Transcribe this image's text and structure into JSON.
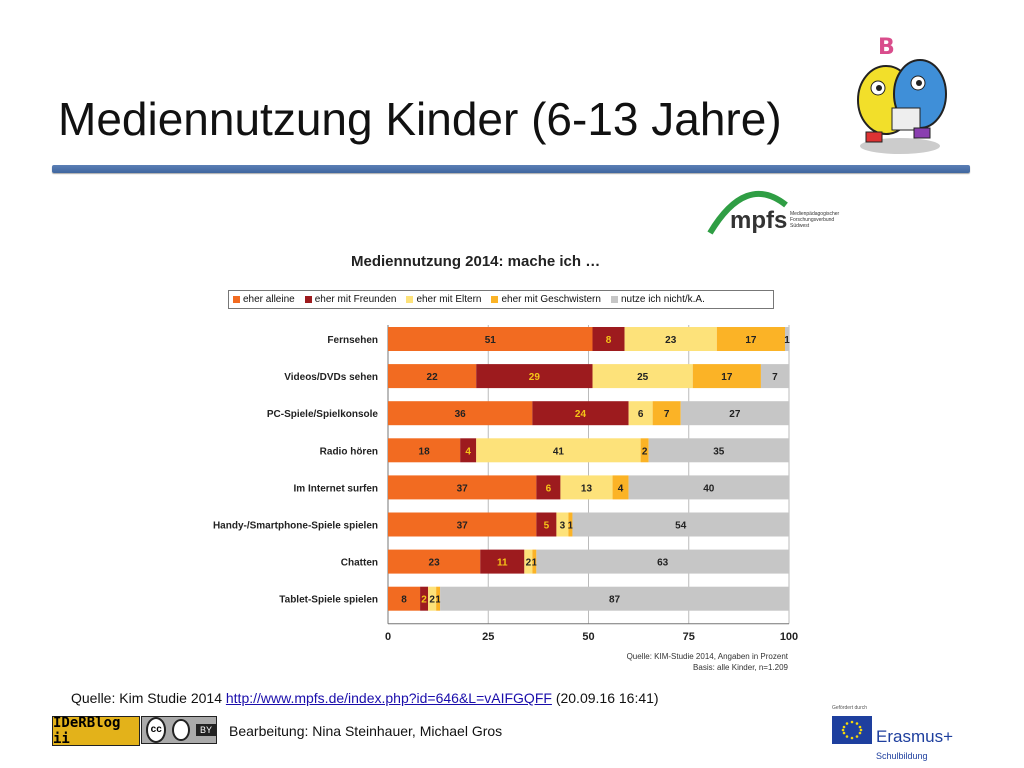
{
  "slide": {
    "title": "Mediennutzung Kinder (6-13 Jahre)",
    "source_prefix": "Quelle: Kim Studie 2014 ",
    "source_link": "http://www.mpfs.de/index.php?id=646&L=vAIFGQFF",
    "source_suffix": " (20.09.16 16:41)",
    "credit": "Bearbeitung: Nina Steinhauer, Michael Gros"
  },
  "logos": {
    "mpfs_text": "mpfs",
    "mpfs_small": "Medienpädagogischer Forschungsverbund Südwest",
    "iderblog": "IDeRBlog ii",
    "cc": "cc",
    "cc_by": "BY",
    "erasmus_supported": "Gefördert durch",
    "erasmus": "Erasmus+",
    "erasmus_sub": "Schulbildung"
  },
  "chart_data": {
    "type": "bar",
    "orientation": "horizontal",
    "stacked": true,
    "title": "Mediennutzung 2014:  mache ich …",
    "categories": [
      "Fernsehen",
      "Videos/DVDs sehen",
      "PC-Spiele/Spielkonsole",
      "Radio hören",
      "Im Internet surfen",
      "Handy-/Smartphone-Spiele spielen",
      "Chatten",
      "Tablet-Spiele spielen"
    ],
    "series": [
      {
        "name": "eher alleine",
        "color": "#f26b21",
        "label_color": "#222222",
        "values": [
          51,
          22,
          36,
          18,
          37,
          37,
          23,
          8
        ]
      },
      {
        "name": "eher mit Freunden",
        "color": "#9d1b1e",
        "label_color": "#f5c518",
        "values": [
          8,
          29,
          24,
          4,
          6,
          5,
          11,
          2
        ]
      },
      {
        "name": "eher mit Eltern",
        "color": "#fde27a",
        "label_color": "#222222",
        "values": [
          23,
          25,
          6,
          41,
          13,
          3,
          2,
          2
        ]
      },
      {
        "name": "eher mit Geschwistern",
        "color": "#fbb326",
        "label_color": "#222222",
        "values": [
          17,
          17,
          7,
          2,
          4,
          1,
          1,
          1
        ]
      },
      {
        "name": "nutze ich nicht/k.A.",
        "color": "#c6c6c6",
        "label_color": "#222222",
        "values": [
          1,
          7,
          27,
          35,
          40,
          54,
          63,
          87
        ]
      }
    ],
    "xlim": [
      0,
      100
    ],
    "xticks": [
      0,
      25,
      50,
      75,
      100
    ],
    "grid": true,
    "legend": "top",
    "source": "Quelle: KIM-Studie 2014, Angaben in Prozent",
    "basis": "Basis: alle Kinder, n=1.209"
  }
}
